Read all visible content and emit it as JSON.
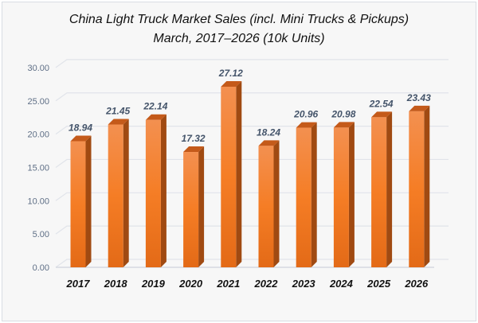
{
  "chart_data": {
    "type": "bar",
    "title": "China Light Truck Market Sales (incl. Mini Trucks & Pickups)",
    "subtitle": "March, 2017–2026 (10k Units)",
    "categories": [
      "2017",
      "2018",
      "2019",
      "2020",
      "2021",
      "2022",
      "2023",
      "2024",
      "2025",
      "2026"
    ],
    "values": [
      18.94,
      21.45,
      22.14,
      17.32,
      27.12,
      18.24,
      20.96,
      20.98,
      22.54,
      23.43
    ],
    "value_labels": [
      "18.94",
      "21.45",
      "22.14",
      "17.32",
      "27.12",
      "18.24",
      "20.96",
      "20.98",
      "22.54",
      "23.43"
    ],
    "yticks": [
      "0.00",
      "5.00",
      "10.00",
      "15.00",
      "20.00",
      "25.00",
      "30.00"
    ],
    "ylim": [
      0,
      30
    ],
    "xlabel": "",
    "ylabel": "",
    "grid": true,
    "legend": "none",
    "bar_color": "#f07d2c",
    "bar_side_color": "#a04a12"
  }
}
